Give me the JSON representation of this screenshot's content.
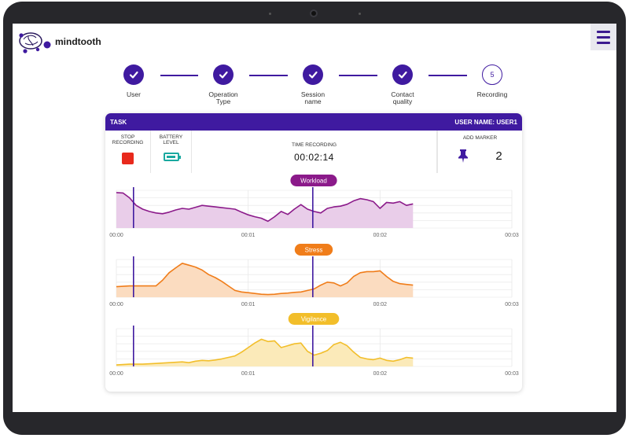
{
  "app": {
    "name": "mindtooth"
  },
  "steps": [
    {
      "label": "User",
      "state": "done"
    },
    {
      "label": "Operation\nType",
      "state": "done"
    },
    {
      "label": "Session\nname",
      "state": "done"
    },
    {
      "label": "Contact\nquality",
      "state": "done"
    },
    {
      "label": "Recording",
      "state": "current",
      "number": "5"
    }
  ],
  "card": {
    "task_label": "TASK",
    "user_label": "USER NAME: USER1",
    "stop_label": "STOP\nRECORDING",
    "battery_label": "BATTERY\nLEVEL",
    "battery_level": 0.8,
    "time_label": "TIME RECORDING",
    "time_value": "00:02:14",
    "marker_label": "ADD MARKER",
    "marker_count": "2"
  },
  "colors": {
    "primary": "#3f1aa0",
    "workload": "#8b1a8a",
    "stress": "#f07d1a",
    "vigilance": "#f2be2a",
    "stop": "#e8291c",
    "battery": "#1aa9a0"
  },
  "chart_data": [
    {
      "type": "area",
      "name": "Workload",
      "x_ticks": [
        "00:00",
        "00:01",
        "00:02",
        "00:03"
      ],
      "xlim": [
        0,
        3
      ],
      "ylim": [
        0,
        1
      ],
      "markers": [
        0.13,
        1.49
      ],
      "x": [
        0,
        0.05,
        0.1,
        0.15,
        0.2,
        0.25,
        0.3,
        0.35,
        0.4,
        0.45,
        0.5,
        0.55,
        0.6,
        0.65,
        0.7,
        0.75,
        0.8,
        0.85,
        0.9,
        0.95,
        1.0,
        1.05,
        1.1,
        1.15,
        1.2,
        1.25,
        1.3,
        1.35,
        1.4,
        1.45,
        1.5,
        1.55,
        1.6,
        1.65,
        1.7,
        1.75,
        1.8,
        1.85,
        1.9,
        1.95,
        2.0,
        2.05,
        2.1,
        2.15,
        2.2,
        2.25
      ],
      "y": [
        0.94,
        0.93,
        0.8,
        0.6,
        0.5,
        0.44,
        0.4,
        0.38,
        0.42,
        0.48,
        0.52,
        0.5,
        0.55,
        0.6,
        0.58,
        0.56,
        0.54,
        0.52,
        0.5,
        0.42,
        0.35,
        0.3,
        0.26,
        0.18,
        0.3,
        0.44,
        0.36,
        0.5,
        0.62,
        0.5,
        0.44,
        0.4,
        0.52,
        0.56,
        0.58,
        0.63,
        0.72,
        0.78,
        0.75,
        0.7,
        0.52,
        0.68,
        0.66,
        0.7,
        0.6,
        0.64
      ]
    },
    {
      "type": "area",
      "name": "Stress",
      "x_ticks": [
        "00:00",
        "00:01",
        "00:02",
        "00:03"
      ],
      "xlim": [
        0,
        3
      ],
      "ylim": [
        0,
        1
      ],
      "markers": [
        0.13,
        1.49
      ],
      "x": [
        0,
        0.1,
        0.2,
        0.3,
        0.35,
        0.4,
        0.45,
        0.5,
        0.55,
        0.6,
        0.65,
        0.7,
        0.75,
        0.8,
        0.85,
        0.9,
        0.95,
        1.0,
        1.05,
        1.1,
        1.15,
        1.2,
        1.25,
        1.3,
        1.35,
        1.4,
        1.45,
        1.5,
        1.55,
        1.6,
        1.65,
        1.7,
        1.75,
        1.8,
        1.85,
        1.9,
        1.95,
        2.0,
        2.05,
        2.1,
        2.15,
        2.2,
        2.25
      ],
      "y": [
        0.28,
        0.3,
        0.3,
        0.3,
        0.45,
        0.65,
        0.78,
        0.9,
        0.85,
        0.8,
        0.72,
        0.6,
        0.52,
        0.42,
        0.3,
        0.18,
        0.14,
        0.12,
        0.1,
        0.08,
        0.07,
        0.08,
        0.1,
        0.11,
        0.13,
        0.14,
        0.18,
        0.22,
        0.32,
        0.4,
        0.38,
        0.3,
        0.38,
        0.55,
        0.65,
        0.68,
        0.68,
        0.7,
        0.55,
        0.42,
        0.36,
        0.34,
        0.32
      ]
    },
    {
      "type": "area",
      "name": "Vigilance",
      "x_ticks": [
        "00:00",
        "00:01",
        "00:02",
        "00:03"
      ],
      "xlim": [
        0,
        3
      ],
      "ylim": [
        0,
        1
      ],
      "markers": [
        0.13,
        1.49
      ],
      "x": [
        0,
        0.1,
        0.2,
        0.3,
        0.4,
        0.5,
        0.55,
        0.6,
        0.65,
        0.7,
        0.75,
        0.8,
        0.85,
        0.9,
        0.95,
        1.0,
        1.05,
        1.1,
        1.15,
        1.2,
        1.25,
        1.3,
        1.35,
        1.4,
        1.45,
        1.5,
        1.55,
        1.6,
        1.65,
        1.7,
        1.75,
        1.8,
        1.85,
        1.9,
        1.95,
        2.0,
        2.05,
        2.1,
        2.15,
        2.2,
        2.25
      ],
      "y": [
        0.04,
        0.06,
        0.06,
        0.08,
        0.1,
        0.12,
        0.1,
        0.14,
        0.16,
        0.15,
        0.17,
        0.2,
        0.24,
        0.28,
        0.38,
        0.5,
        0.62,
        0.72,
        0.66,
        0.68,
        0.5,
        0.55,
        0.6,
        0.62,
        0.4,
        0.3,
        0.35,
        0.42,
        0.58,
        0.64,
        0.55,
        0.38,
        0.24,
        0.2,
        0.18,
        0.22,
        0.16,
        0.14,
        0.18,
        0.24,
        0.22
      ]
    }
  ]
}
